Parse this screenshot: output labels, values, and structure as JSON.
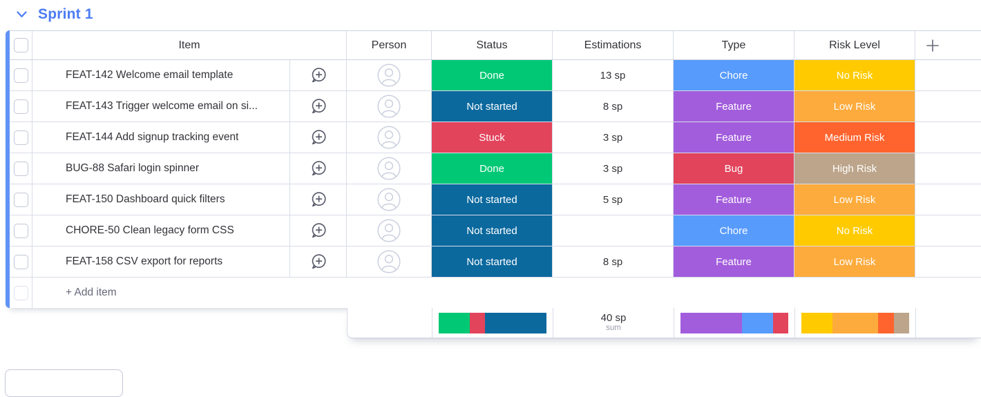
{
  "group": {
    "title": "Sprint 1",
    "title_color": "#4c7cf4",
    "bar_color": "#6093f5"
  },
  "icons": {
    "group_collapse": "chevron-down",
    "add_update": "speech-bubble-plus",
    "person_placeholder": "person-circle",
    "add_column": "plus"
  },
  "table": {
    "headers": {
      "item": "Item",
      "person": "Person",
      "status": "Status",
      "estimations": "Estimations",
      "type": "Type",
      "risk": "Risk Level"
    },
    "rows": [
      {
        "item": "FEAT-142 Welcome email template",
        "status": {
          "label": "Done",
          "color": "#00c875"
        },
        "estimation": "13 sp",
        "type": {
          "label": "Chore",
          "color": "#579bfc"
        },
        "risk": {
          "label": "No Risk",
          "color": "#ffcb00"
        }
      },
      {
        "item": "FEAT-143 Trigger welcome email on si...",
        "status": {
          "label": "Not started",
          "color": "#0b699e"
        },
        "estimation": "8 sp",
        "type": {
          "label": "Feature",
          "color": "#a25ddc"
        },
        "risk": {
          "label": "Low Risk",
          "color": "#fdab3d"
        }
      },
      {
        "item": "FEAT-144 Add signup tracking event",
        "status": {
          "label": "Stuck",
          "color": "#e2445c"
        },
        "estimation": "3 sp",
        "type": {
          "label": "Feature",
          "color": "#a25ddc"
        },
        "risk": {
          "label": "Medium Risk",
          "color": "#ff642e"
        }
      },
      {
        "item": "BUG-88 Safari login spinner",
        "status": {
          "label": "Done",
          "color": "#00c875"
        },
        "estimation": "3 sp",
        "type": {
          "label": "Bug",
          "color": "#e2445c"
        },
        "risk": {
          "label": "High Risk",
          "color": "#bca58a"
        }
      },
      {
        "item": "FEAT-150 Dashboard quick filters",
        "status": {
          "label": "Not started",
          "color": "#0b699e"
        },
        "estimation": "5 sp",
        "type": {
          "label": "Feature",
          "color": "#a25ddc"
        },
        "risk": {
          "label": "Low Risk",
          "color": "#fdab3d"
        }
      },
      {
        "item": "CHORE-50 Clean legacy form CSS",
        "status": {
          "label": "Not started",
          "color": "#0b699e"
        },
        "estimation": "",
        "type": {
          "label": "Chore",
          "color": "#579bfc"
        },
        "risk": {
          "label": "No Risk",
          "color": "#ffcb00"
        }
      },
      {
        "item": "FEAT-158 CSV export for reports",
        "status": {
          "label": "Not started",
          "color": "#0b699e"
        },
        "estimation": "8 sp",
        "type": {
          "label": "Feature",
          "color": "#a25ddc"
        },
        "risk": {
          "label": "Low Risk",
          "color": "#fdab3d"
        }
      }
    ],
    "add_item_label": "+ Add item",
    "summary": {
      "status_bar": [
        {
          "label": "Done",
          "color": "#00c875",
          "count": 2
        },
        {
          "label": "Stuck",
          "color": "#e2445c",
          "count": 1
        },
        {
          "label": "Not started",
          "color": "#0b699e",
          "count": 4
        }
      ],
      "estimation_total": "40 sp",
      "estimation_fn": "sum",
      "type_bar": [
        {
          "label": "Feature",
          "color": "#a25ddc",
          "count": 4
        },
        {
          "label": "Chore",
          "color": "#579bfc",
          "count": 2
        },
        {
          "label": "Bug",
          "color": "#e2445c",
          "count": 1
        }
      ],
      "risk_bar": [
        {
          "label": "No Risk",
          "color": "#ffcb00",
          "count": 2
        },
        {
          "label": "Low Risk",
          "color": "#fdab3d",
          "count": 3
        },
        {
          "label": "Medium Risk",
          "color": "#ff642e",
          "count": 1
        },
        {
          "label": "High Risk",
          "color": "#bca58a",
          "count": 1
        }
      ]
    }
  }
}
